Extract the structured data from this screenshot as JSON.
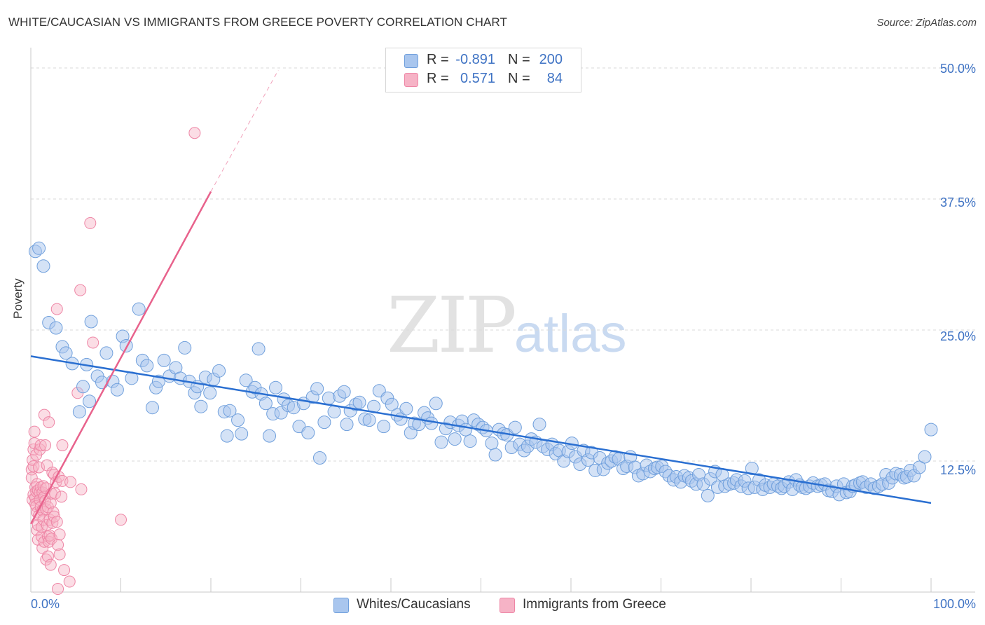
{
  "title": "WHITE/CAUCASIAN VS IMMIGRANTS FROM GREECE POVERTY CORRELATION CHART",
  "source": "Source: ZipAtlas.com",
  "watermark": {
    "zip": "ZIP",
    "atlas": "atlas"
  },
  "legend": {
    "r_label": "R =",
    "n_label": "N =",
    "rows": [
      {
        "r": "-0.891",
        "n": "200"
      },
      {
        "r": "0.571",
        "n": "84"
      }
    ]
  },
  "bottom_legend": [
    "Whites/Caucasians",
    "Immigrants from Greece"
  ],
  "colors": {
    "blue_fill": "#a9c6ee",
    "blue_stroke": "#6f9fdc",
    "blue_line": "#2a6fd1",
    "pink_fill": "#f6b3c6",
    "pink_stroke": "#ee86a6",
    "pink_line": "#e8628c",
    "grid": "#d9d9d9",
    "tick_text": "#3f73c4"
  },
  "chart_data": {
    "type": "scatter",
    "title": "WHITE/CAUCASIAN VS IMMIGRANTS FROM GREECE POVERTY CORRELATION CHART",
    "xlabel": "",
    "ylabel": "Poverty",
    "xlim": [
      0,
      100
    ],
    "ylim": [
      0,
      50
    ],
    "x_tick_labels": [
      "0.0%",
      "100.0%"
    ],
    "y_ticks": [
      12.5,
      25.0,
      37.5,
      50.0
    ],
    "y_tick_labels": [
      "12.5%",
      "25.0%",
      "37.5%",
      "50.0%"
    ],
    "grid": "horizontal dashed",
    "legend_position": "top-center",
    "series": [
      {
        "name": "Whites/Caucasians",
        "R": -0.891,
        "N": 200,
        "trend": {
          "x": [
            0,
            100
          ],
          "y": [
            22.5,
            8.5
          ]
        },
        "points": [
          [
            0.5,
            32.5
          ],
          [
            0.9,
            32.8
          ],
          [
            1.4,
            31.1
          ],
          [
            2.0,
            25.7
          ],
          [
            2.8,
            25.2
          ],
          [
            3.5,
            23.4
          ],
          [
            3.9,
            22.8
          ],
          [
            4.6,
            21.8
          ],
          [
            5.4,
            17.2
          ],
          [
            5.8,
            19.6
          ],
          [
            6.2,
            21.7
          ],
          [
            6.5,
            18.2
          ],
          [
            6.7,
            25.8
          ],
          [
            7.4,
            20.6
          ],
          [
            7.9,
            20.0
          ],
          [
            8.4,
            22.8
          ],
          [
            9.1,
            20.1
          ],
          [
            9.6,
            19.3
          ],
          [
            10.2,
            24.4
          ],
          [
            10.6,
            23.5
          ],
          [
            11.2,
            20.4
          ],
          [
            12.0,
            27.0
          ],
          [
            12.4,
            22.1
          ],
          [
            12.9,
            21.6
          ],
          [
            13.5,
            17.6
          ],
          [
            13.9,
            19.5
          ],
          [
            14.2,
            20.1
          ],
          [
            14.8,
            22.1
          ],
          [
            15.4,
            20.6
          ],
          [
            16.1,
            21.4
          ],
          [
            16.6,
            20.4
          ],
          [
            17.1,
            23.3
          ],
          [
            17.6,
            20.1
          ],
          [
            18.2,
            19.0
          ],
          [
            18.5,
            19.6
          ],
          [
            18.9,
            17.7
          ],
          [
            19.4,
            20.5
          ],
          [
            19.9,
            19.0
          ],
          [
            20.3,
            20.3
          ],
          [
            20.9,
            21.1
          ],
          [
            21.5,
            17.2
          ],
          [
            21.8,
            14.9
          ],
          [
            22.1,
            17.3
          ],
          [
            23.0,
            16.4
          ],
          [
            23.4,
            15.1
          ],
          [
            23.9,
            20.2
          ],
          [
            24.6,
            19.1
          ],
          [
            24.9,
            19.5
          ],
          [
            25.3,
            23.2
          ],
          [
            25.6,
            18.9
          ],
          [
            26.1,
            18.0
          ],
          [
            26.5,
            14.9
          ],
          [
            26.9,
            17.0
          ],
          [
            27.2,
            19.5
          ],
          [
            27.8,
            17.1
          ],
          [
            28.1,
            18.4
          ],
          [
            28.6,
            17.8
          ],
          [
            29.2,
            17.6
          ],
          [
            29.8,
            15.8
          ],
          [
            30.3,
            18.0
          ],
          [
            30.8,
            15.2
          ],
          [
            31.3,
            18.6
          ],
          [
            31.8,
            19.4
          ],
          [
            32.1,
            12.8
          ],
          [
            32.6,
            16.2
          ],
          [
            33.1,
            18.5
          ],
          [
            33.7,
            17.2
          ],
          [
            34.3,
            18.7
          ],
          [
            34.8,
            19.1
          ],
          [
            35.1,
            16.0
          ],
          [
            35.5,
            17.3
          ],
          [
            36.1,
            17.9
          ],
          [
            36.5,
            18.1
          ],
          [
            37.1,
            16.5
          ],
          [
            37.6,
            16.4
          ],
          [
            38.1,
            17.7
          ],
          [
            38.7,
            19.2
          ],
          [
            39.2,
            15.8
          ],
          [
            39.6,
            18.5
          ],
          [
            40.1,
            17.9
          ],
          [
            40.7,
            16.9
          ],
          [
            41.1,
            16.5
          ],
          [
            41.7,
            17.5
          ],
          [
            42.2,
            15.2
          ],
          [
            42.6,
            16.1
          ],
          [
            43.1,
            16.0
          ],
          [
            43.7,
            17.1
          ],
          [
            44.1,
            16.6
          ],
          [
            44.5,
            16.1
          ],
          [
            45.0,
            18.0
          ],
          [
            45.6,
            14.3
          ],
          [
            46.1,
            15.6
          ],
          [
            46.6,
            16.2
          ],
          [
            47.1,
            14.6
          ],
          [
            47.5,
            15.9
          ],
          [
            47.9,
            16.3
          ],
          [
            48.3,
            15.5
          ],
          [
            48.8,
            14.4
          ],
          [
            49.2,
            16.4
          ],
          [
            49.7,
            16.0
          ],
          [
            50.2,
            15.7
          ],
          [
            50.6,
            15.4
          ],
          [
            51.2,
            14.2
          ],
          [
            51.6,
            13.1
          ],
          [
            52.0,
            15.5
          ],
          [
            52.5,
            15.1
          ],
          [
            52.9,
            15.0
          ],
          [
            53.4,
            13.8
          ],
          [
            53.8,
            15.7
          ],
          [
            54.3,
            14.1
          ],
          [
            54.8,
            13.5
          ],
          [
            55.2,
            13.9
          ],
          [
            55.6,
            14.6
          ],
          [
            56.1,
            14.3
          ],
          [
            56.5,
            16.0
          ],
          [
            56.9,
            13.9
          ],
          [
            57.4,
            13.6
          ],
          [
            57.9,
            14.1
          ],
          [
            58.3,
            13.2
          ],
          [
            58.7,
            13.5
          ],
          [
            59.2,
            12.5
          ],
          [
            59.7,
            13.4
          ],
          [
            60.1,
            14.2
          ],
          [
            60.5,
            12.9
          ],
          [
            61.0,
            12.2
          ],
          [
            61.4,
            13.5
          ],
          [
            61.9,
            12.6
          ],
          [
            62.3,
            13.3
          ],
          [
            62.7,
            11.6
          ],
          [
            63.2,
            12.8
          ],
          [
            63.6,
            11.7
          ],
          [
            64.1,
            12.3
          ],
          [
            64.5,
            12.5
          ],
          [
            64.9,
            12.9
          ],
          [
            65.3,
            12.7
          ],
          [
            65.8,
            11.8
          ],
          [
            66.2,
            12.0
          ],
          [
            66.6,
            12.9
          ],
          [
            67.1,
            11.9
          ],
          [
            67.5,
            11.1
          ],
          [
            68.0,
            11.3
          ],
          [
            68.4,
            12.1
          ],
          [
            68.8,
            11.5
          ],
          [
            69.3,
            11.8
          ],
          [
            69.6,
            11.9
          ],
          [
            70.1,
            12.0
          ],
          [
            70.5,
            11.5
          ],
          [
            70.9,
            11.1
          ],
          [
            71.4,
            10.7
          ],
          [
            71.7,
            11.0
          ],
          [
            72.2,
            10.5
          ],
          [
            72.6,
            11.1
          ],
          [
            73.1,
            10.9
          ],
          [
            73.4,
            10.6
          ],
          [
            73.9,
            10.3
          ],
          [
            74.2,
            11.2
          ],
          [
            74.7,
            10.3
          ],
          [
            75.2,
            9.2
          ],
          [
            75.5,
            10.8
          ],
          [
            76.0,
            11.5
          ],
          [
            76.3,
            10.0
          ],
          [
            76.8,
            11.2
          ],
          [
            77.1,
            10.1
          ],
          [
            77.6,
            10.3
          ],
          [
            78.1,
            10.4
          ],
          [
            78.4,
            10.7
          ],
          [
            78.9,
            10.1
          ],
          [
            79.3,
            10.6
          ],
          [
            79.7,
            9.9
          ],
          [
            80.1,
            11.8
          ],
          [
            80.4,
            10.0
          ],
          [
            80.9,
            10.7
          ],
          [
            81.3,
            9.8
          ],
          [
            81.6,
            10.2
          ],
          [
            82.1,
            10.0
          ],
          [
            82.5,
            10.3
          ],
          [
            83.0,
            10.1
          ],
          [
            83.4,
            9.9
          ],
          [
            83.7,
            10.1
          ],
          [
            84.2,
            10.5
          ],
          [
            84.6,
            9.8
          ],
          [
            85.0,
            10.7
          ],
          [
            85.4,
            10.2
          ],
          [
            85.7,
            10.0
          ],
          [
            86.1,
            9.9
          ],
          [
            86.5,
            10.1
          ],
          [
            86.9,
            10.4
          ],
          [
            87.4,
            10.1
          ],
          [
            87.8,
            10.2
          ],
          [
            88.2,
            10.3
          ],
          [
            88.6,
            9.7
          ],
          [
            89.0,
            9.6
          ],
          [
            89.5,
            10.1
          ],
          [
            89.8,
            9.3
          ],
          [
            90.3,
            10.3
          ],
          [
            90.6,
            9.5
          ],
          [
            91.0,
            9.6
          ],
          [
            91.3,
            10.1
          ],
          [
            91.6,
            10.2
          ],
          [
            92.1,
            10.4
          ],
          [
            92.4,
            10.5
          ],
          [
            92.8,
            10.0
          ],
          [
            93.3,
            10.3
          ],
          [
            93.7,
            9.9
          ],
          [
            94.2,
            10.1
          ],
          [
            94.6,
            10.3
          ],
          [
            95.0,
            11.2
          ],
          [
            95.3,
            10.4
          ],
          [
            95.7,
            10.9
          ],
          [
            96.1,
            11.3
          ],
          [
            96.6,
            11.2
          ],
          [
            97.0,
            10.9
          ],
          [
            97.3,
            11.0
          ],
          [
            97.7,
            11.6
          ],
          [
            98.1,
            11.1
          ],
          [
            98.7,
            11.9
          ],
          [
            99.3,
            12.9
          ],
          [
            100.0,
            15.5
          ]
        ]
      },
      {
        "name": "Immigrants from Greece",
        "R": 0.571,
        "N": 84,
        "trend": {
          "x": [
            0,
            20
          ],
          "y": [
            6.5,
            38.2
          ]
        },
        "trend_extension": {
          "x": [
            20,
            27.5
          ],
          "y": [
            38.2,
            49.8
          ]
        },
        "points": [
          [
            0.1,
            11.7
          ],
          [
            0.1,
            10.9
          ],
          [
            0.2,
            8.8
          ],
          [
            0.2,
            12.6
          ],
          [
            0.3,
            12.0
          ],
          [
            0.3,
            9.3
          ],
          [
            0.3,
            13.6
          ],
          [
            0.4,
            14.2
          ],
          [
            0.4,
            15.3
          ],
          [
            0.5,
            10.0
          ],
          [
            0.5,
            9.0
          ],
          [
            0.5,
            8.4
          ],
          [
            0.6,
            13.1
          ],
          [
            0.6,
            9.6
          ],
          [
            0.6,
            8.2
          ],
          [
            0.7,
            5.9
          ],
          [
            0.7,
            7.6
          ],
          [
            0.7,
            10.3
          ],
          [
            0.8,
            9.7
          ],
          [
            0.8,
            5.0
          ],
          [
            0.8,
            6.4
          ],
          [
            0.9,
            7.3
          ],
          [
            0.9,
            11.9
          ],
          [
            1.0,
            9.5
          ],
          [
            1.0,
            8.8
          ],
          [
            1.0,
            13.6
          ],
          [
            1.1,
            10.0
          ],
          [
            1.1,
            8.1
          ],
          [
            1.1,
            14.0
          ],
          [
            1.2,
            5.3
          ],
          [
            1.2,
            6.2
          ],
          [
            1.3,
            9.5
          ],
          [
            1.3,
            7.8
          ],
          [
            1.3,
            4.2
          ],
          [
            1.4,
            10.1
          ],
          [
            1.4,
            6.9
          ],
          [
            1.5,
            16.9
          ],
          [
            1.5,
            9.1
          ],
          [
            1.5,
            4.8
          ],
          [
            1.6,
            8.7
          ],
          [
            1.6,
            14.0
          ],
          [
            1.7,
            9.9
          ],
          [
            1.7,
            3.1
          ],
          [
            1.7,
            7.9
          ],
          [
            1.8,
            6.4
          ],
          [
            1.8,
            12.1
          ],
          [
            1.9,
            5.3
          ],
          [
            1.9,
            8.1
          ],
          [
            1.9,
            3.4
          ],
          [
            2.0,
            4.8
          ],
          [
            2.0,
            16.2
          ],
          [
            2.1,
            6.9
          ],
          [
            2.1,
            5.4
          ],
          [
            2.2,
            2.6
          ],
          [
            2.2,
            8.5
          ],
          [
            2.3,
            9.4
          ],
          [
            2.3,
            5.1
          ],
          [
            2.4,
            11.4
          ],
          [
            2.4,
            6.6
          ],
          [
            2.5,
            7.6
          ],
          [
            2.6,
            11.2
          ],
          [
            2.6,
            7.2
          ],
          [
            2.7,
            9.4
          ],
          [
            2.8,
            10.5
          ],
          [
            2.9,
            6.7
          ],
          [
            2.9,
            27.0
          ],
          [
            3.0,
            0.3
          ],
          [
            3.0,
            4.5
          ],
          [
            3.1,
            11.0
          ],
          [
            3.2,
            5.5
          ],
          [
            3.2,
            3.6
          ],
          [
            3.4,
            9.1
          ],
          [
            3.5,
            14.0
          ],
          [
            3.5,
            10.6
          ],
          [
            3.7,
            2.1
          ],
          [
            4.3,
            1.0
          ],
          [
            4.4,
            10.5
          ],
          [
            5.2,
            19.0
          ],
          [
            5.5,
            28.8
          ],
          [
            5.6,
            9.8
          ],
          [
            6.6,
            35.2
          ],
          [
            6.9,
            23.8
          ],
          [
            10.0,
            6.9
          ],
          [
            18.2,
            43.8
          ]
        ]
      }
    ]
  }
}
